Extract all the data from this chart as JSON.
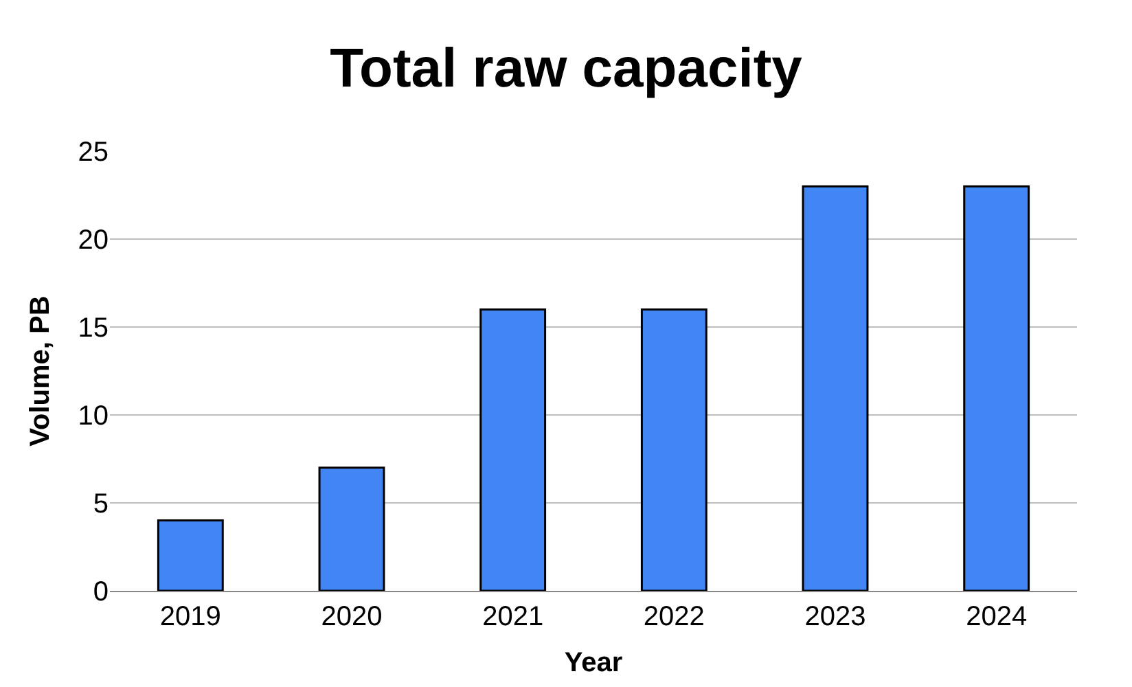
{
  "chart_data": {
    "type": "bar",
    "title": "Total raw capacity",
    "xlabel": "Year",
    "ylabel": "Volume, PB",
    "categories": [
      "2019",
      "2020",
      "2021",
      "2022",
      "2023",
      "2024"
    ],
    "values": [
      4,
      7,
      16,
      16,
      23,
      23
    ],
    "color": "#4285f4",
    "ylim": [
      0,
      25
    ],
    "yticks": [
      0,
      5,
      10,
      15,
      20,
      25
    ],
    "grid": "y",
    "legend": false
  }
}
